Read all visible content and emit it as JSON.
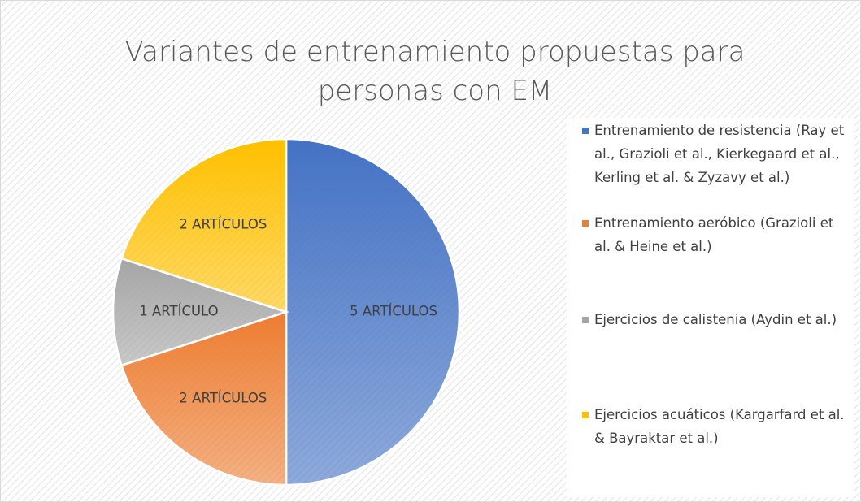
{
  "chart_data": {
    "type": "pie",
    "title": "Variantes de entrenamiento propuestas para personas con EM",
    "categories": [
      "Entrenamiento de resistencia (Ray et al., Grazioli et al., Kierkegaard et al., Kerling et al. & Zyzavy et al.)",
      "Entrenamiento aeróbico (Grazioli et al. & Heine et al.)",
      "Ejercicios de calistenia (Aydin et al.)",
      "Ejercicios acuáticos (Kargarfard et al. & Bayraktar et al.)"
    ],
    "values": [
      5,
      2,
      1,
      2
    ],
    "value_labels": [
      "5 ARTÍCULOS",
      "2 ARTÍCULOS",
      "1 ARTÍCULO",
      "2 ARTÍCULOS"
    ],
    "colors": [
      "#4472c4",
      "#ed7d31",
      "#a5a5a5",
      "#ffc000"
    ],
    "legend": "right"
  }
}
